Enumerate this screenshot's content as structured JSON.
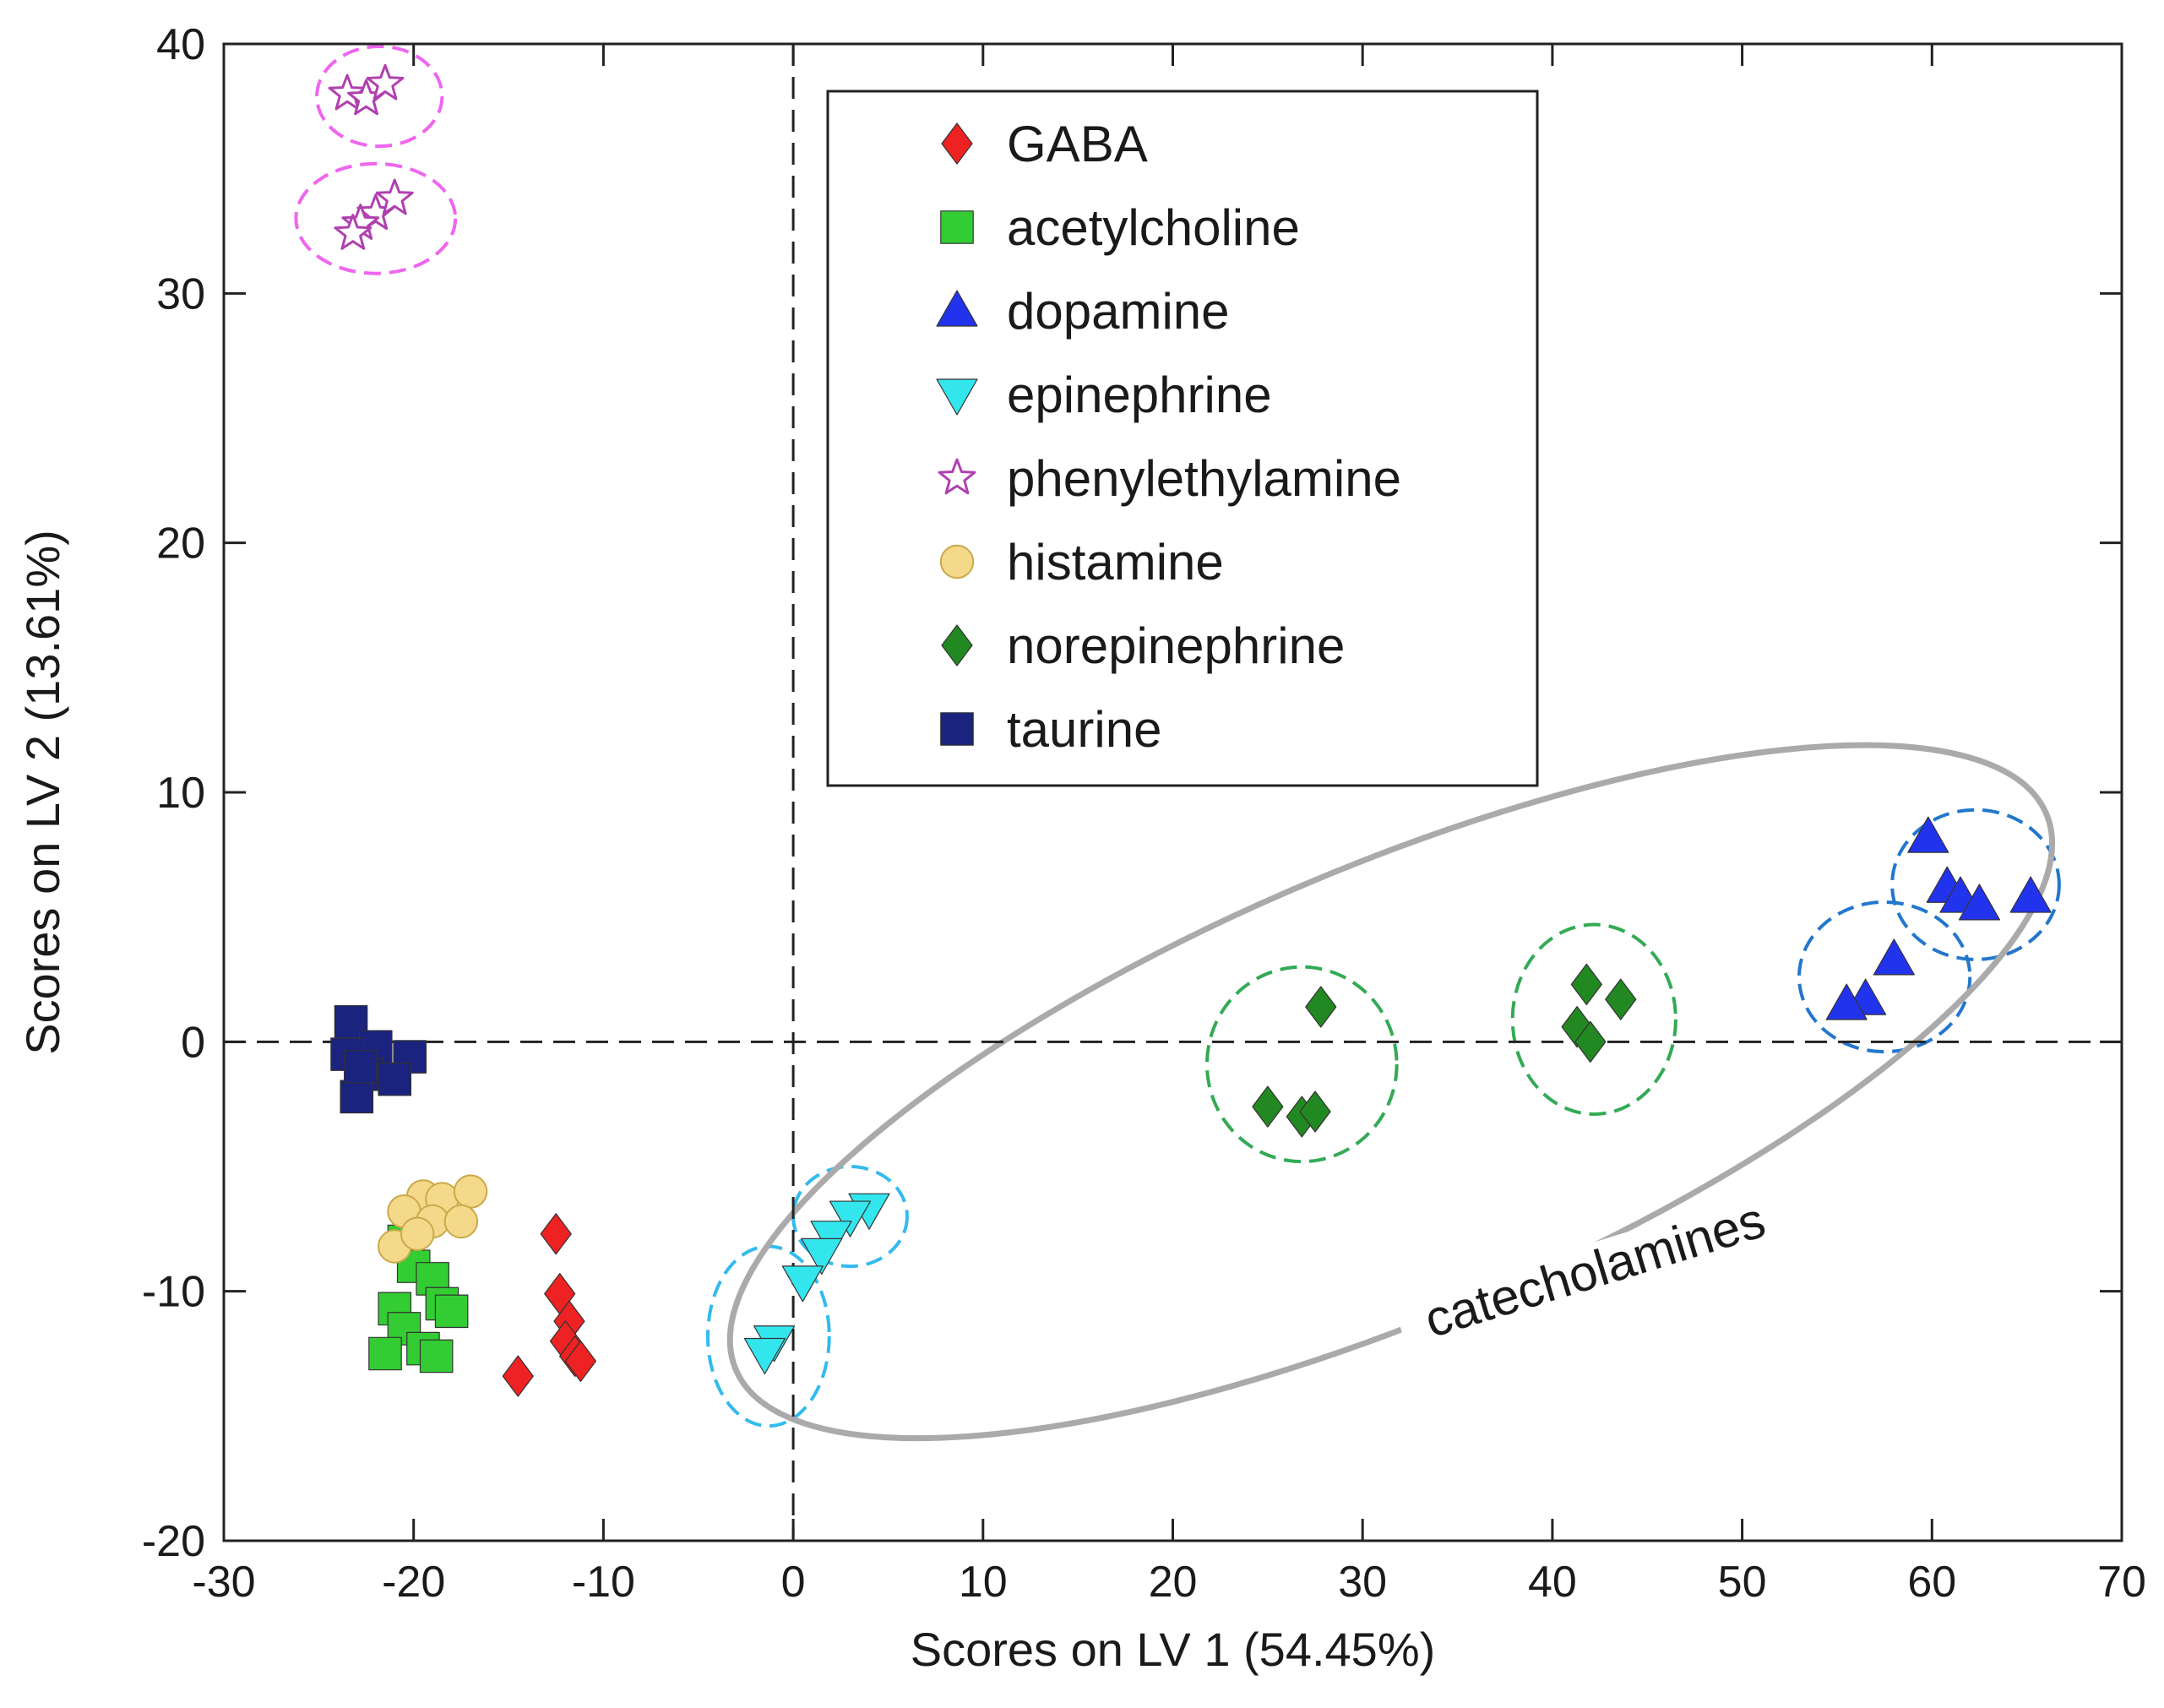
{
  "chart_data": {
    "type": "scatter",
    "title": "",
    "xlabel": "Scores on LV 1 (54.45%)",
    "ylabel": "Scores on LV 2 (13.61%)",
    "xlim": [
      -30,
      70
    ],
    "ylim": [
      -20,
      40
    ],
    "xticks": [
      -30,
      -20,
      -10,
      0,
      10,
      20,
      30,
      40,
      50,
      60,
      70
    ],
    "yticks": [
      -20,
      -10,
      0,
      10,
      20,
      30,
      40
    ],
    "xtick_labels": [
      "-30",
      "-20",
      "-10",
      "0",
      "10",
      "20",
      "30",
      "40",
      "50",
      "60",
      "70"
    ],
    "ytick_labels": [
      "-20",
      "-10",
      "0",
      "10",
      "20",
      "30",
      "40"
    ],
    "grid": false,
    "reference_lines": {
      "x": 0,
      "y": 0,
      "style": "dashed"
    },
    "legend_position": "top-center",
    "series": [
      {
        "name": "GABA",
        "marker": "diamond",
        "color": "#ee2222",
        "x": [
          -12.5,
          -12.3,
          -11.8,
          -12.0,
          -11.5,
          -11.2,
          -14.5
        ],
        "y": [
          -7.7,
          -10.1,
          -11.2,
          -12.0,
          -12.6,
          -12.8,
          -13.4
        ]
      },
      {
        "name": "acetylcholine",
        "marker": "square",
        "color": "#33cc33",
        "x": [
          -20.5,
          -20.0,
          -19.0,
          -18.5,
          -21.0,
          -20.5,
          -18.0,
          -21.5,
          -19.5,
          -18.8
        ],
        "y": [
          -8.0,
          -9.0,
          -9.5,
          -10.5,
          -10.7,
          -11.5,
          -10.8,
          -12.5,
          -12.3,
          -12.6
        ]
      },
      {
        "name": "dopamine",
        "marker": "triangle-up",
        "color": "#2233ee",
        "x": [
          59.8,
          60.8,
          61.5,
          62.5,
          65.2,
          58.0,
          56.5,
          55.5
        ],
        "y": [
          8.2,
          6.2,
          5.8,
          5.5,
          5.8,
          3.3,
          1.7,
          1.5
        ]
      },
      {
        "name": "epinephrine",
        "marker": "triangle-down",
        "color": "#33e6ee",
        "x": [
          4.0,
          3.0,
          2.0,
          1.5,
          0.5,
          -1.0,
          -1.5
        ],
        "y": [
          -6.7,
          -7.0,
          -7.8,
          -8.5,
          -9.6,
          -12.0,
          -12.5
        ]
      },
      {
        "name": "phenylethylamine",
        "marker": "star",
        "color": "#ee66ee",
        "x": [
          -23.5,
          -22.5,
          -21.5,
          -22.0,
          -21.0,
          -22.8,
          -23.2
        ],
        "y": [
          38.0,
          37.8,
          38.4,
          33.2,
          33.8,
          32.8,
          32.4
        ]
      },
      {
        "name": "histamine",
        "marker": "circle",
        "color": "#f5d98a",
        "x": [
          -19.5,
          -18.5,
          -17.0,
          -20.5,
          -19.0,
          -17.5,
          -21.0,
          -19.8
        ],
        "y": [
          -6.2,
          -6.3,
          -6.0,
          -6.8,
          -7.2,
          -7.2,
          -8.2,
          -7.7
        ]
      },
      {
        "name": "norepinephrine",
        "marker": "diamond",
        "color": "#228822",
        "x": [
          27.8,
          25.0,
          26.8,
          27.5,
          41.8,
          43.6,
          41.3,
          42.0
        ],
        "y": [
          1.4,
          -2.6,
          -3.0,
          -2.8,
          2.3,
          1.7,
          0.6,
          0.0
        ]
      },
      {
        "name": "taurine",
        "marker": "square",
        "color": "#1a237e",
        "x": [
          -23.3,
          -22.0,
          -20.2,
          -23.5,
          -22.5,
          -21.0,
          -23.0,
          -22.8
        ],
        "y": [
          0.8,
          -0.2,
          -0.6,
          -0.5,
          -1.3,
          -1.5,
          -2.2,
          -1.0
        ]
      }
    ],
    "cluster_outlines": [
      {
        "color": "#ee66ee",
        "cx": -21.8,
        "cy": 37.9,
        "rx": 3.3,
        "ry": 2.0
      },
      {
        "color": "#ee66ee",
        "cx": -22.0,
        "cy": 33.0,
        "rx": 4.2,
        "ry": 2.2
      },
      {
        "color": "#33bbee",
        "cx": 3.0,
        "cy": -7.0,
        "rx": 3.0,
        "ry": 2.0
      },
      {
        "color": "#33bbee",
        "cx": -1.3,
        "cy": -11.8,
        "rx": 3.2,
        "ry": 3.6
      },
      {
        "color": "#33aa55",
        "cx": 26.8,
        "cy": -0.9,
        "rx": 5.0,
        "ry": 3.9
      },
      {
        "color": "#33aa55",
        "cx": 42.2,
        "cy": 0.9,
        "rx": 4.3,
        "ry": 3.8
      },
      {
        "color": "#2277cc",
        "cx": 62.3,
        "cy": 6.3,
        "rx": 4.4,
        "ry": 3.0
      },
      {
        "color": "#2277cc",
        "cx": 57.5,
        "cy": 2.6,
        "rx": 4.5,
        "ry": 3.0
      }
    ],
    "group_outline": {
      "label": "catecholamines",
      "color": "#aaaaaa",
      "cx": 31.5,
      "cy": -2.0,
      "rx": 37.5,
      "ry": 9.0,
      "angle": 23
    },
    "annotations": [
      {
        "text": "catecholamines",
        "x": 42.5,
        "y": -9.8,
        "angle": -17
      }
    ]
  }
}
